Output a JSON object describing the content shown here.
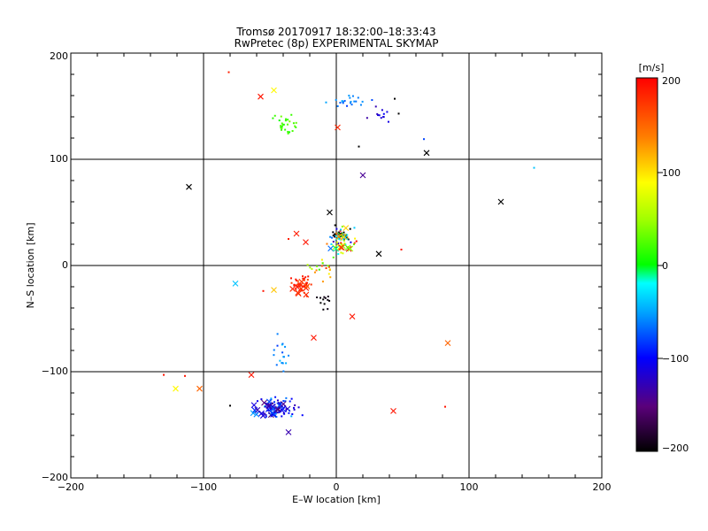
{
  "chart_data": {
    "type": "scatter",
    "title": "Tromsø 20170917 18:32:00–18:33:43",
    "subtitle": "RwPretec (8p) EXPERIMENTAL SKYMAP",
    "xlabel": "E–W location [km]",
    "ylabel": "N–S location [km]",
    "xlim": [
      -200,
      200
    ],
    "ylim": [
      -200,
      200
    ],
    "x_ticks": [
      "−200",
      "−100",
      "0",
      "100",
      "200"
    ],
    "y_ticks": [
      "−200",
      "−100",
      "0",
      "100",
      "200"
    ],
    "grid": true,
    "colorbar": {
      "label": "[m/s]",
      "range": [
        -200,
        200
      ],
      "ticks": [
        "200",
        "100",
        "0",
        "−100",
        "−200"
      ]
    },
    "marker_types": [
      "dot",
      "cross"
    ],
    "clusters": [
      {
        "name": "north-cyan",
        "cx": 8,
        "cy": 154,
        "sx": 12,
        "sy": 5,
        "v": -60,
        "vs": 18,
        "n": 22,
        "m": "dot"
      },
      {
        "name": "north-blue",
        "cx": 32,
        "cy": 142,
        "sx": 6,
        "sy": 5,
        "v": -120,
        "vs": 15,
        "n": 12,
        "m": "dot"
      },
      {
        "name": "north-green",
        "cx": -38,
        "cy": 133,
        "sx": 6,
        "sy": 6,
        "v": 20,
        "vs": 10,
        "n": 28,
        "m": "dot"
      },
      {
        "name": "center-mixed",
        "cx": 5,
        "cy": 25,
        "sx": 6,
        "sy": 8,
        "v": 0,
        "vs": 170,
        "n": 50,
        "m": "dot"
      },
      {
        "name": "center-black",
        "cx": 4,
        "cy": 28,
        "sx": 5,
        "sy": 3,
        "v": -195,
        "vs": 5,
        "n": 25,
        "m": "dot"
      },
      {
        "name": "center-crosses",
        "cx": 6,
        "cy": 22,
        "sx": 6,
        "sy": 8,
        "v": 60,
        "vs": 120,
        "n": 16,
        "m": "cross"
      },
      {
        "name": "mid-red",
        "cx": -25,
        "cy": -18,
        "sx": 6,
        "sy": 6,
        "v": 180,
        "vs": 15,
        "n": 35,
        "m": "dot"
      },
      {
        "name": "mid-red-crosses",
        "cx": -25,
        "cy": -20,
        "sx": 6,
        "sy": 5,
        "v": 175,
        "vs": 15,
        "n": 10,
        "m": "cross"
      },
      {
        "name": "mid-yellow",
        "cx": -8,
        "cy": -5,
        "sx": 8,
        "sy": 8,
        "v": 80,
        "vs": 60,
        "n": 20,
        "m": "dot"
      },
      {
        "name": "mid-black",
        "cx": -8,
        "cy": -35,
        "sx": 5,
        "sy": 5,
        "v": -195,
        "vs": 5,
        "n": 12,
        "m": "dot"
      },
      {
        "name": "stream-cyan",
        "cx": -40,
        "cy": -90,
        "sx": 4,
        "sy": 14,
        "v": -60,
        "vs": 15,
        "n": 18,
        "m": "dot"
      },
      {
        "name": "south-blue",
        "cx": -45,
        "cy": -135,
        "sx": 11,
        "sy": 7,
        "v": -100,
        "vs": 35,
        "n": 60,
        "m": "dot"
      },
      {
        "name": "south-crosses",
        "cx": -50,
        "cy": -135,
        "sx": 10,
        "sy": 6,
        "v": -110,
        "vs": 40,
        "n": 30,
        "m": "cross"
      }
    ],
    "isolated_points": [
      {
        "x": -81,
        "y": 182,
        "v": 185,
        "m": "dot"
      },
      {
        "x": -57,
        "y": 159,
        "v": 190,
        "m": "cross"
      },
      {
        "x": -47,
        "y": 165,
        "v": 90,
        "m": "cross"
      },
      {
        "x": 1,
        "y": 130,
        "v": 180,
        "m": "cross"
      },
      {
        "x": 17,
        "y": 112,
        "v": -200,
        "m": "dot"
      },
      {
        "x": 44,
        "y": 157,
        "v": -200,
        "m": "dot"
      },
      {
        "x": 47,
        "y": 143,
        "v": -200,
        "m": "dot"
      },
      {
        "x": 66,
        "y": 119,
        "v": -80,
        "m": "dot"
      },
      {
        "x": 68,
        "y": 106,
        "v": -200,
        "m": "cross"
      },
      {
        "x": 149,
        "y": 92,
        "v": -40,
        "m": "dot"
      },
      {
        "x": 20,
        "y": 85,
        "v": -140,
        "m": "cross"
      },
      {
        "x": -111,
        "y": 74,
        "v": -200,
        "m": "cross"
      },
      {
        "x": 124,
        "y": 60,
        "v": -200,
        "m": "cross"
      },
      {
        "x": -5,
        "y": 50,
        "v": -200,
        "m": "cross"
      },
      {
        "x": 32,
        "y": 11,
        "v": -200,
        "m": "cross"
      },
      {
        "x": 49,
        "y": 15,
        "v": 190,
        "m": "dot"
      },
      {
        "x": -76,
        "y": -17,
        "v": -40,
        "m": "cross"
      },
      {
        "x": -47,
        "y": -23,
        "v": 110,
        "m": "cross"
      },
      {
        "x": -30,
        "y": 30,
        "v": 185,
        "m": "cross"
      },
      {
        "x": -36,
        "y": 25,
        "v": 185,
        "m": "dot"
      },
      {
        "x": -23,
        "y": 22,
        "v": 190,
        "m": "cross"
      },
      {
        "x": -55,
        "y": -24,
        "v": 190,
        "m": "dot"
      },
      {
        "x": 12,
        "y": -48,
        "v": 190,
        "m": "cross"
      },
      {
        "x": -17,
        "y": -68,
        "v": 190,
        "m": "cross"
      },
      {
        "x": 84,
        "y": -73,
        "v": 150,
        "m": "cross"
      },
      {
        "x": -130,
        "y": -103,
        "v": 190,
        "m": "dot"
      },
      {
        "x": -121,
        "y": -116,
        "v": 90,
        "m": "cross"
      },
      {
        "x": -114,
        "y": -104,
        "v": 190,
        "m": "dot"
      },
      {
        "x": -103,
        "y": -116,
        "v": 150,
        "m": "cross"
      },
      {
        "x": -80,
        "y": -132,
        "v": -200,
        "m": "dot"
      },
      {
        "x": -64,
        "y": -103,
        "v": 190,
        "m": "cross"
      },
      {
        "x": 43,
        "y": -137,
        "v": 190,
        "m": "cross"
      },
      {
        "x": 82,
        "y": -133,
        "v": 190,
        "m": "dot"
      },
      {
        "x": -36,
        "y": -157,
        "v": -130,
        "m": "cross"
      }
    ]
  }
}
